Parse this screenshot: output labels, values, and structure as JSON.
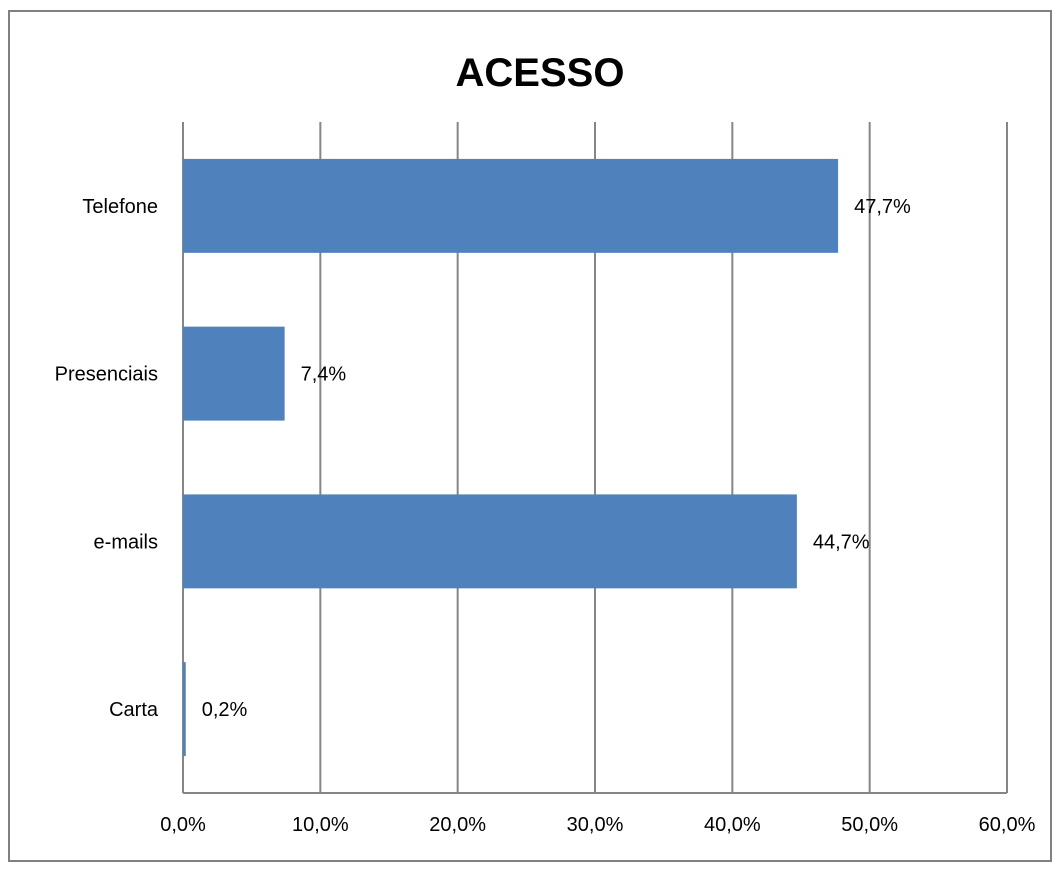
{
  "chart_data": {
    "type": "bar",
    "orientation": "horizontal",
    "title": "ACESSO",
    "categories": [
      "Telefone",
      "Presenciais",
      "e-mails",
      "Carta"
    ],
    "values": [
      47.7,
      7.4,
      44.7,
      0.2
    ],
    "data_labels": [
      "47,7%",
      "7,4%",
      "44,7%",
      "0,2%"
    ],
    "xlim": [
      0,
      60
    ],
    "xticks": [
      0,
      10,
      20,
      30,
      40,
      50,
      60
    ],
    "xtick_labels": [
      "0,0%",
      "10,0%",
      "20,0%",
      "30,0%",
      "40,0%",
      "50,0%",
      "60,0%"
    ],
    "xlabel": "",
    "ylabel": "",
    "grid": "vertical major gridlines",
    "legend": "none",
    "bar_color": "#4f81bd",
    "grid_color": "#868686"
  }
}
